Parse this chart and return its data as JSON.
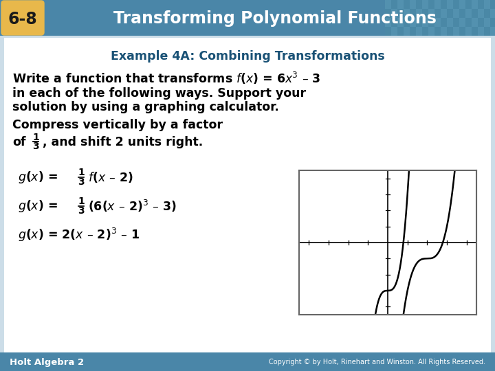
{
  "header_bg": "#4a86a8",
  "header_text": "Transforming Polynomial Functions",
  "badge_text": "6-8",
  "badge_bg": "#e8b84b",
  "badge_text_color": "#1a1a1a",
  "main_bg": "#ccdde8",
  "body_bg": "#ffffff",
  "example_title": "Example 4A: Combining Transformations",
  "example_title_color": "#1a5276",
  "footer_bg": "#4a86a8",
  "footer_left": "Holt Algebra 2",
  "footer_right": "Copyright © by Holt, Rinehart and Winston. All Rights Reserved.",
  "footer_text_color": "#ffffff",
  "dash": "–"
}
